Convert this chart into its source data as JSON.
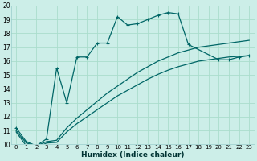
{
  "title": "",
  "xlabel": "Humidex (Indice chaleur)",
  "bg_color": "#cceee8",
  "grid_color": "#aaddcc",
  "line_color": "#006666",
  "xlim": [
    -0.5,
    23.5
  ],
  "ylim": [
    10,
    20
  ],
  "xticks": [
    0,
    1,
    2,
    3,
    4,
    5,
    6,
    7,
    8,
    9,
    10,
    11,
    12,
    13,
    14,
    15,
    16,
    17,
    18,
    19,
    20,
    21,
    22,
    23
  ],
  "yticks": [
    10,
    11,
    12,
    13,
    14,
    15,
    16,
    17,
    18,
    19,
    20
  ],
  "curve1_x": [
    0,
    1,
    2,
    3,
    4,
    5,
    6,
    7,
    8,
    9,
    10,
    11,
    12,
    13,
    14,
    15,
    16,
    17,
    20,
    21,
    22,
    23
  ],
  "curve1_y": [
    11.2,
    10.2,
    9.9,
    10.4,
    15.5,
    13.0,
    16.3,
    16.3,
    17.3,
    17.3,
    19.2,
    18.6,
    18.7,
    19.0,
    19.3,
    19.5,
    19.4,
    17.2,
    16.1,
    16.1,
    16.3,
    16.4
  ],
  "curve2_x": [
    0,
    1,
    2,
    3,
    4,
    5,
    6,
    7,
    8,
    9,
    10,
    11,
    12,
    13,
    14,
    15,
    16,
    17,
    18,
    19,
    20,
    21,
    22,
    23
  ],
  "curve2_y": [
    11.0,
    10.1,
    9.9,
    10.2,
    10.3,
    11.2,
    11.9,
    12.5,
    13.1,
    13.7,
    14.2,
    14.7,
    15.2,
    15.6,
    16.0,
    16.3,
    16.6,
    16.8,
    17.0,
    17.1,
    17.2,
    17.3,
    17.4,
    17.5
  ],
  "curve3_x": [
    0,
    1,
    2,
    3,
    4,
    5,
    6,
    7,
    8,
    9,
    10,
    11,
    12,
    13,
    14,
    15,
    16,
    17,
    18,
    19,
    20,
    21,
    22,
    23
  ],
  "curve3_y": [
    10.9,
    9.9,
    9.75,
    10.1,
    10.15,
    10.9,
    11.5,
    12.0,
    12.5,
    13.0,
    13.5,
    13.9,
    14.3,
    14.7,
    15.05,
    15.35,
    15.6,
    15.8,
    16.0,
    16.1,
    16.2,
    16.3,
    16.35,
    16.4
  ]
}
